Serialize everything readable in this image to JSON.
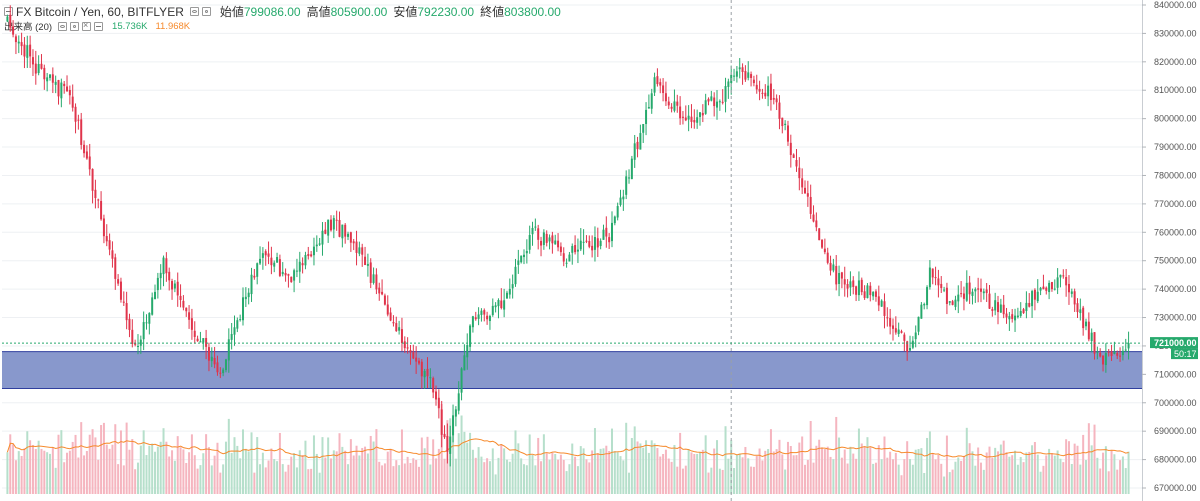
{
  "header": {
    "title": "FX Bitcoin / Yen, 60, BITFLYER",
    "ohlc": [
      {
        "label": "始値",
        "value": "799086.00"
      },
      {
        "label": "高値",
        "value": "805900.00"
      },
      {
        "label": "安値",
        "value": "792230.00"
      },
      {
        "label": "終値",
        "value": "803800.00"
      }
    ],
    "volume_label": "出来高 (20)",
    "volume_value": "15.736K",
    "volume_ma_value": "11.968K"
  },
  "colors": {
    "up": "#26a96c",
    "down": "#e0344b",
    "up_volume": "#b6dfcb",
    "down_volume": "#f5b5bf",
    "volume_ma": "#f68a2c",
    "zone_fill": "#8898cc",
    "zone_border": "#2f3f9e",
    "price_line": "#26a96c",
    "grid": "#eef0f3",
    "crosshair": "#9aa0a6",
    "axis_text": "#555555"
  },
  "axis": {
    "ticks": [
      "840000.00",
      "830000.00",
      "820000.00",
      "810000.00",
      "800000.00",
      "790000.00",
      "780000.00",
      "770000.00",
      "760000.00",
      "750000.00",
      "740000.00",
      "730000.00",
      "720000.00",
      "710000.00",
      "700000.00",
      "690000.00",
      "680000.00",
      "670000.00"
    ],
    "price_label": "721000.00",
    "countdown_label": "50:17"
  },
  "chart_data": {
    "type": "candlestick",
    "title": "FX Bitcoin / Yen, 60, BITFLYER",
    "interval": "60",
    "ylim": [
      670000,
      840000
    ],
    "current_price": 721000,
    "support_zone": [
      705000,
      718000
    ],
    "candles_seed": 23,
    "price_path": [
      [
        0,
        834000
      ],
      [
        12,
        815000
      ],
      [
        22,
        808000
      ],
      [
        37,
        750000
      ],
      [
        45,
        718000
      ],
      [
        55,
        750000
      ],
      [
        63,
        730000
      ],
      [
        75,
        711000
      ],
      [
        90,
        755000
      ],
      [
        100,
        742000
      ],
      [
        113,
        764000
      ],
      [
        122,
        757000
      ],
      [
        140,
        720000
      ],
      [
        150,
        705000
      ],
      [
        155,
        682000
      ],
      [
        163,
        727000
      ],
      [
        175,
        736000
      ],
      [
        185,
        760000
      ],
      [
        197,
        752000
      ],
      [
        212,
        759000
      ],
      [
        228,
        812000
      ],
      [
        240,
        800000
      ],
      [
        252,
        808000
      ],
      [
        258,
        818000
      ],
      [
        270,
        808000
      ],
      [
        282,
        770000
      ],
      [
        292,
        744000
      ],
      [
        305,
        738000
      ],
      [
        318,
        718000
      ],
      [
        325,
        745000
      ],
      [
        333,
        733000
      ],
      [
        340,
        742000
      ],
      [
        352,
        730000
      ],
      [
        372,
        745000
      ],
      [
        385,
        715000
      ],
      [
        395,
        721000
      ]
    ],
    "volume_ylim": [
      0,
      100000
    ]
  }
}
